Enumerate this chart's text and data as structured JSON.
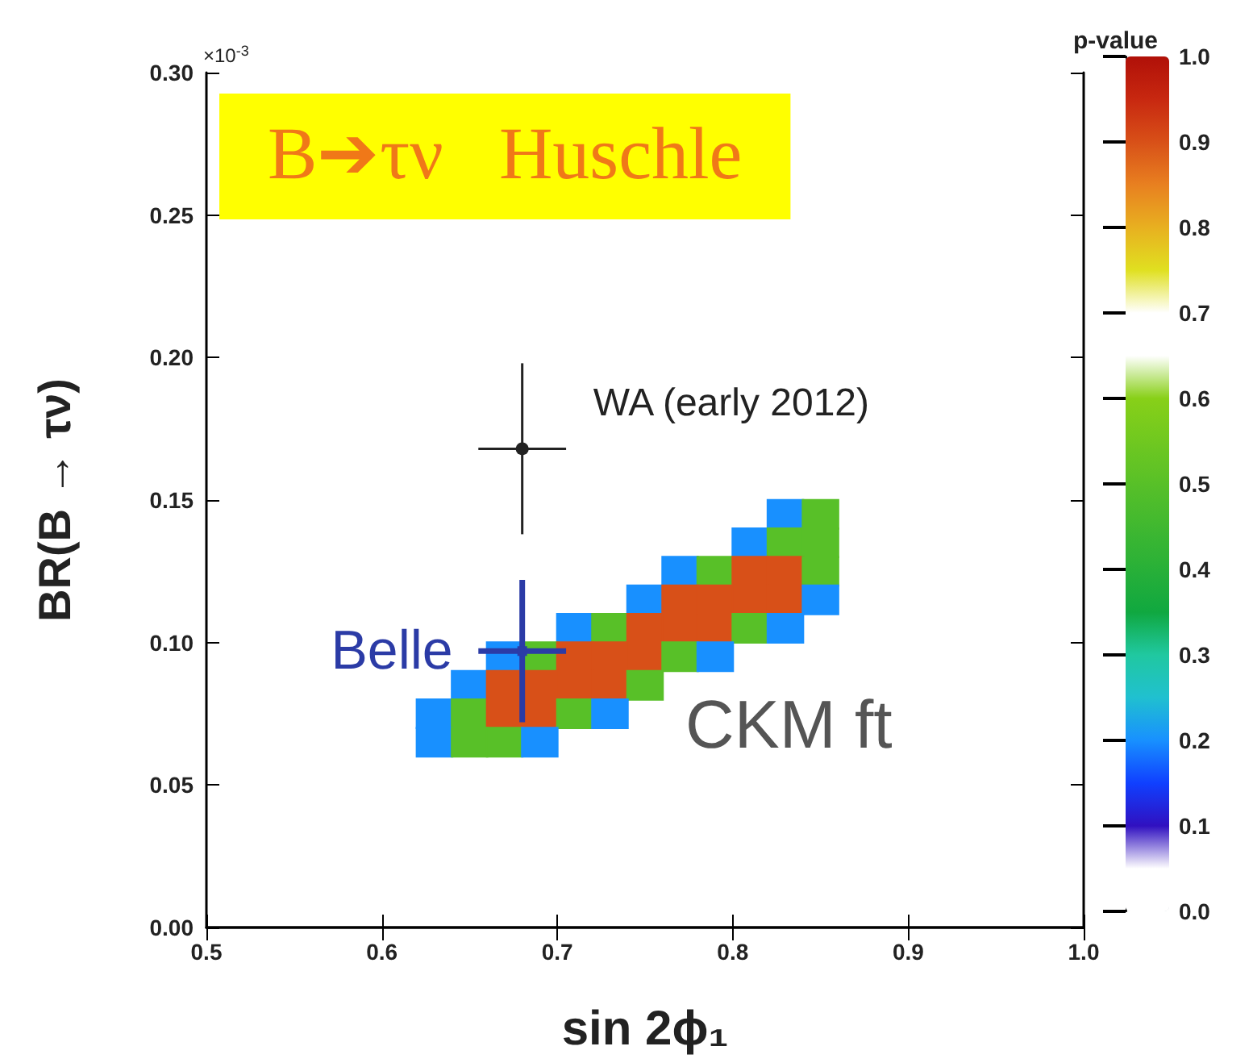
{
  "chart_data": {
    "type": "scatter",
    "title": "B➔τν   Huschle",
    "xlabel": "sin 2ϕ₁",
    "ylabel": "BR(B → τν)",
    "clabel": "p-value",
    "annotations": [
      "×10$^{-3}$",
      "CKM ft"
    ],
    "series": [
      {
        "type": "scatter",
        "marker": "square",
        "x": [
          0.83,
          0.85,
          0.81,
          0.83,
          0.85,
          0.77,
          0.79,
          0.81,
          0.83,
          0.85,
          0.75,
          0.77,
          0.79,
          0.81,
          0.83,
          0.85,
          0.71,
          0.73,
          0.75,
          0.77,
          0.79,
          0.81,
          0.83,
          0.67,
          0.69,
          0.71,
          0.73,
          0.75,
          0.77,
          0.79,
          0.65,
          0.67,
          0.69,
          0.71,
          0.73,
          0.75,
          0.63,
          0.65,
          0.67,
          0.69,
          0.71,
          0.73,
          0.63,
          0.65,
          0.67,
          0.69
        ],
        "values": [
          0.145,
          0.145,
          0.135,
          0.135,
          0.135,
          0.125,
          0.125,
          0.125,
          0.125,
          0.125,
          0.115,
          0.115,
          0.115,
          0.115,
          0.115,
          0.115,
          0.105,
          0.105,
          0.105,
          0.105,
          0.105,
          0.105,
          0.105,
          0.095,
          0.095,
          0.095,
          0.095,
          0.095,
          0.095,
          0.095,
          0.085,
          0.085,
          0.085,
          0.085,
          0.085,
          0.085,
          0.075,
          0.075,
          0.075,
          0.075,
          0.075,
          0.075,
          0.065,
          0.065,
          0.065,
          0.065
        ],
        "cvalues": [
          0.2,
          0.5,
          0.2,
          0.5,
          0.5,
          0.2,
          0.5,
          0.9,
          0.9,
          0.5,
          0.2,
          0.9,
          0.9,
          0.9,
          0.9,
          0.2,
          0.2,
          0.5,
          0.9,
          0.9,
          0.9,
          0.5,
          0.2,
          0.2,
          0.5,
          0.9,
          0.9,
          0.9,
          0.5,
          0.2,
          0.2,
          0.9,
          0.9,
          0.9,
          0.9,
          0.5,
          0.2,
          0.5,
          0.9,
          0.9,
          0.5,
          0.2,
          0.2,
          0.5,
          0.5,
          0.2
        ],
        "colors": [
          "#1890ff",
          "#58c028",
          "#1890ff",
          "#58c028",
          "#58c028",
          "#1890ff",
          "#58c028",
          "#d85018",
          "#d85018",
          "#58c028",
          "#1890ff",
          "#d85018",
          "#d85018",
          "#d85018",
          "#d85018",
          "#1890ff",
          "#1890ff",
          "#58c028",
          "#d85018",
          "#d85018",
          "#d85018",
          "#58c028",
          "#1890ff",
          "#1890ff",
          "#58c028",
          "#d85018",
          "#d85018",
          "#d85018",
          "#58c028",
          "#1890ff",
          "#1890ff",
          "#d85018",
          "#d85018",
          "#d85018",
          "#d85018",
          "#58c028",
          "#1890ff",
          "#58c028",
          "#d85018",
          "#d85018",
          "#58c028",
          "#1890ff",
          "#1890ff",
          "#58c028",
          "#58c028",
          "#1890ff"
        ]
      },
      {
        "type": "scatter",
        "name": "WA (early 2012)",
        "color": "#222222",
        "marker": "circle",
        "x": [
          0.68
        ],
        "values": [
          0.168
        ],
        "errors": [
          0.03
        ],
        "xerrors": [
          0.025
        ]
      },
      {
        "type": "scatter",
        "name": "Belle",
        "color": "#2b3ba6",
        "marker": "square",
        "x": [
          0.68
        ],
        "values": [
          0.097
        ],
        "errors": [
          0.025
        ],
        "xerrors": [
          0.025
        ]
      }
    ],
    "xlim": [
      0.5,
      1.0
    ],
    "xticks": [
      {
        "value": 0.5,
        "label": "0.5"
      },
      {
        "value": 0.6,
        "label": "0.6"
      },
      {
        "value": 0.7,
        "label": "0.7"
      },
      {
        "value": 0.8,
        "label": "0.8"
      },
      {
        "value": 0.9,
        "label": "0.9"
      },
      {
        "value": 1.0,
        "label": "1.0"
      }
    ],
    "ylim": [
      0,
      0.3
    ],
    "yticks": [
      {
        "value": 0,
        "label": "0.00"
      },
      {
        "value": 0.05,
        "label": "0.05"
      },
      {
        "value": 0.1,
        "label": "0.10"
      },
      {
        "value": 0.15,
        "label": "0.15"
      },
      {
        "value": 0.2,
        "label": "0.20"
      },
      {
        "value": 0.25,
        "label": "0.25"
      },
      {
        "value": 0.3,
        "label": "0.30"
      }
    ],
    "clim": [
      0,
      1
    ],
    "cticks": [
      {
        "value": 0,
        "label": "0.0"
      },
      {
        "value": 0.1,
        "label": "0.1"
      },
      {
        "value": 0.2,
        "label": "0.2"
      },
      {
        "value": 0.3,
        "label": "0.3"
      },
      {
        "value": 0.4,
        "label": "0.4"
      },
      {
        "value": 0.5,
        "label": "0.5"
      },
      {
        "value": 0.6,
        "label": "0.6"
      },
      {
        "value": 0.7,
        "label": "0.7"
      },
      {
        "value": 0.8,
        "label": "0.8"
      },
      {
        "value": 0.9,
        "label": "0.9"
      },
      {
        "value": 1.0,
        "label": "1.0"
      }
    ],
    "grid": false
  }
}
